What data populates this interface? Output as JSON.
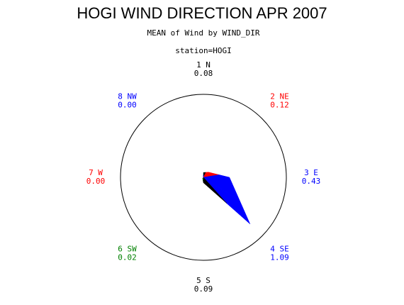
{
  "chart_data": {
    "type": "star",
    "title": "HOGI WIND DIRECTION APR 2007",
    "subtitle": "MEAN of Wind by WIND_DIR",
    "group_label": "station=HOGI",
    "categories": [
      "1 N",
      "2 NE",
      "3 E",
      "4 SE",
      "5 S",
      "6 SW",
      "7 W",
      "8 NW"
    ],
    "values": [
      0.08,
      0.12,
      0.43,
      1.09,
      0.09,
      0.02,
      0.0,
      0.0
    ],
    "value_labels": [
      "0.08",
      "0.12",
      "0.43",
      "1.09",
      "0.09",
      "0.02",
      "0.00",
      "0.00"
    ],
    "colors": [
      "#000000",
      "#ff0000",
      "#0000ff",
      "#0000ff",
      "#000000",
      "#008000",
      "#ff0000",
      "#0000ff"
    ],
    "rlim": [
      0,
      1.37
    ]
  }
}
